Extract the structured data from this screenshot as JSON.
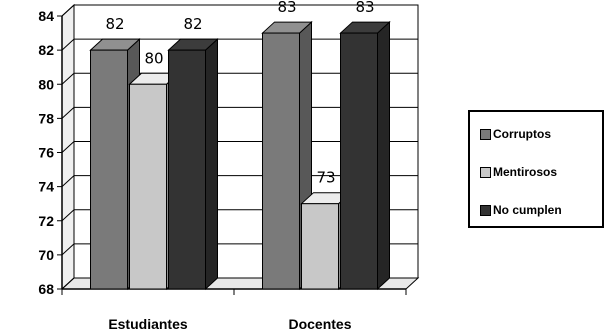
{
  "chart_data": {
    "type": "bar",
    "categories": [
      "Estudiantes",
      "Docentes"
    ],
    "series": [
      {
        "name": "Corruptos",
        "values": [
          82,
          83
        ],
        "color": "#7a7a7a"
      },
      {
        "name": "Mentirosos",
        "values": [
          80,
          73
        ],
        "color": "#c8c8c8"
      },
      {
        "name": "No cumplen",
        "values": [
          82,
          83
        ],
        "color": "#333333"
      }
    ],
    "data_labels": [
      [
        "82",
        "83"
      ],
      [
        "80",
        "73"
      ],
      [
        "82",
        "83"
      ]
    ],
    "ylim": [
      68,
      84
    ],
    "yticks": [
      "68",
      "70",
      "72",
      "74",
      "76",
      "78",
      "80",
      "82",
      "84"
    ],
    "grid": true,
    "legend_position": "right",
    "three_d": true
  }
}
